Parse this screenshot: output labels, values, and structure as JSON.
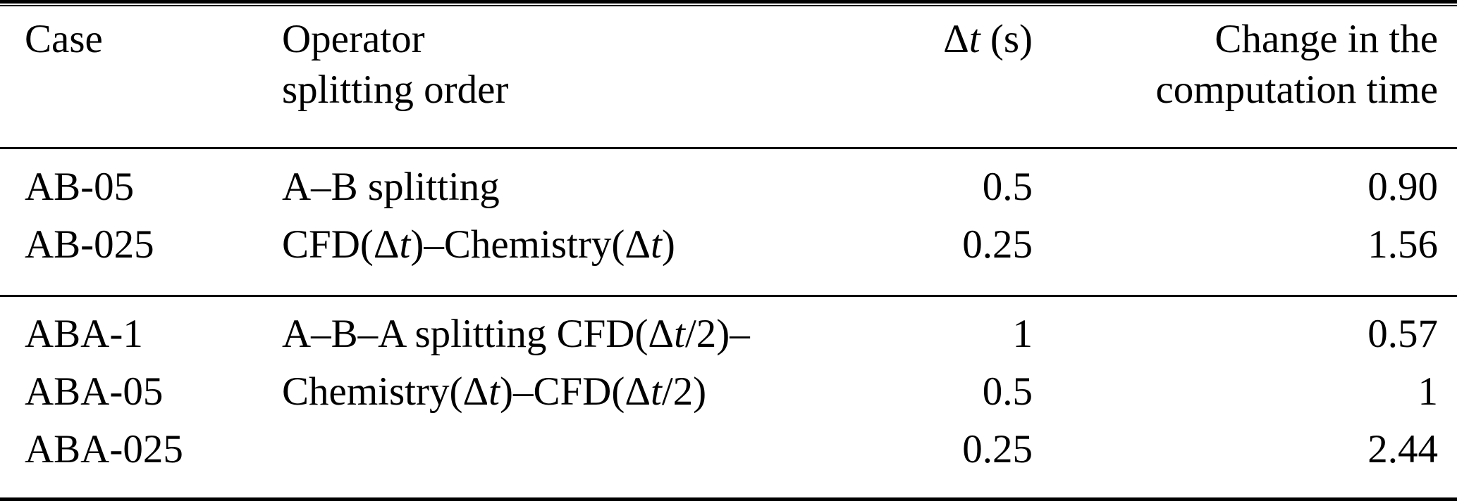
{
  "colors": {
    "background": "#ffffff",
    "text": "#000000",
    "rule": "#000000"
  },
  "table": {
    "header": {
      "case": "Case",
      "operator": [
        "Operator",
        "splitting order"
      ],
      "dt_html": "Δ<i>t</i> (s)",
      "change": [
        "Change in the",
        "computation time"
      ]
    },
    "groups": [
      {
        "cases": [
          "AB-05",
          "AB-025"
        ],
        "operator_lines": [
          "A–B splitting",
          "CFD(Δ<i>t</i>)–Chemistry(Δ<i>t</i>)"
        ],
        "dt_values": [
          "0.5",
          "0.25"
        ],
        "change_values": [
          "0.90",
          "1.56"
        ]
      },
      {
        "cases": [
          "ABA-1",
          "ABA-05",
          "ABA-025"
        ],
        "operator_lines": [
          "A–B–A splitting CFD(Δ<i>t</i>/2)–",
          "Chemistry(Δ<i>t</i>)–CFD(Δ<i>t</i>/2)"
        ],
        "dt_values": [
          "1",
          "0.5",
          "0.25"
        ],
        "change_values": [
          "0.57",
          "1",
          "2.44"
        ]
      }
    ]
  }
}
